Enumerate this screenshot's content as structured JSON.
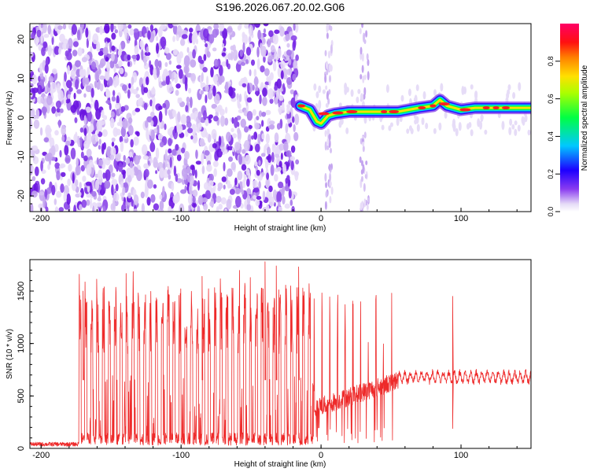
{
  "title": "S196.2026.067.20.02.G06",
  "colors": {
    "snr_line": "#ee2a2a",
    "axis": "#000000",
    "scatter_purple": "#7a2be6",
    "scatter_light": "#d9c8f5"
  },
  "chart_data": [
    {
      "type": "heatmap",
      "xlabel": "Height of straight line (km)",
      "ylabel": "Frequency (Hz)",
      "xlim": [
        -208,
        150
      ],
      "ylim": [
        -24,
        24
      ],
      "xticks": [
        -200,
        -100,
        0,
        100
      ],
      "yticks": [
        -20,
        -10,
        0,
        10,
        20
      ],
      "colorbar": {
        "label": "Normalized spectral amplitude",
        "range": [
          0,
          1
        ],
        "ticks": [
          "0.0",
          "0.2",
          "0.4",
          "0.6",
          "0.8"
        ],
        "colormap": "rainbow (white/violet low → red/magenta high)"
      },
      "ridge": {
        "description": "narrow high-amplitude frequency band",
        "x": [
          -15,
          -8,
          -3,
          0,
          5,
          10,
          20,
          30,
          40,
          55,
          70,
          80,
          85,
          90,
          100,
          110,
          120,
          130,
          140,
          150
        ],
        "y": [
          3.0,
          2.0,
          -1.0,
          -1.5,
          0.5,
          1.0,
          1.5,
          1.5,
          1.5,
          1.5,
          2.5,
          3.0,
          4.5,
          3.0,
          2.0,
          2.5,
          2.5,
          2.5,
          2.5,
          2.5
        ],
        "peak_amplitude": 0.9
      },
      "noise_region": {
        "x_range": [
          -208,
          -17
        ],
        "amplitude_range": [
          0.0,
          0.3
        ]
      }
    },
    {
      "type": "line",
      "xlabel": "Height of straight line (km)",
      "ylabel": "SNR (10 * v/v)",
      "xlim": [
        -208,
        150
      ],
      "ylim": [
        0,
        1800
      ],
      "xticks": [
        -200,
        -100,
        0,
        100
      ],
      "yticks": [
        0,
        500,
        1000,
        1500
      ],
      "segments": [
        {
          "x_range": [
            -208,
            -173
          ],
          "baseline": 35,
          "description": "low noise floor"
        },
        {
          "x_range": [
            -173,
            -5
          ],
          "baseline": 60,
          "spike_range": [
            1000,
            1780
          ],
          "description": "intermittent spikes"
        },
        {
          "x_range": [
            -5,
            55
          ],
          "baseline_start": 380,
          "baseline_end": 650,
          "spike_range": [
            600,
            1650
          ]
        },
        {
          "x_range": [
            55,
            150
          ],
          "baseline": 680,
          "band": [
            600,
            780
          ]
        }
      ],
      "notable_points": [
        {
          "x": -170,
          "y": 1500
        },
        {
          "x": -85,
          "y": 1640
        },
        {
          "x": -40,
          "y": 1780
        },
        {
          "x": -32,
          "y": 1740
        },
        {
          "x": -16,
          "y": 1730
        },
        {
          "x": 94,
          "y": 1450
        },
        {
          "x": 94,
          "y": 190
        }
      ]
    }
  ]
}
